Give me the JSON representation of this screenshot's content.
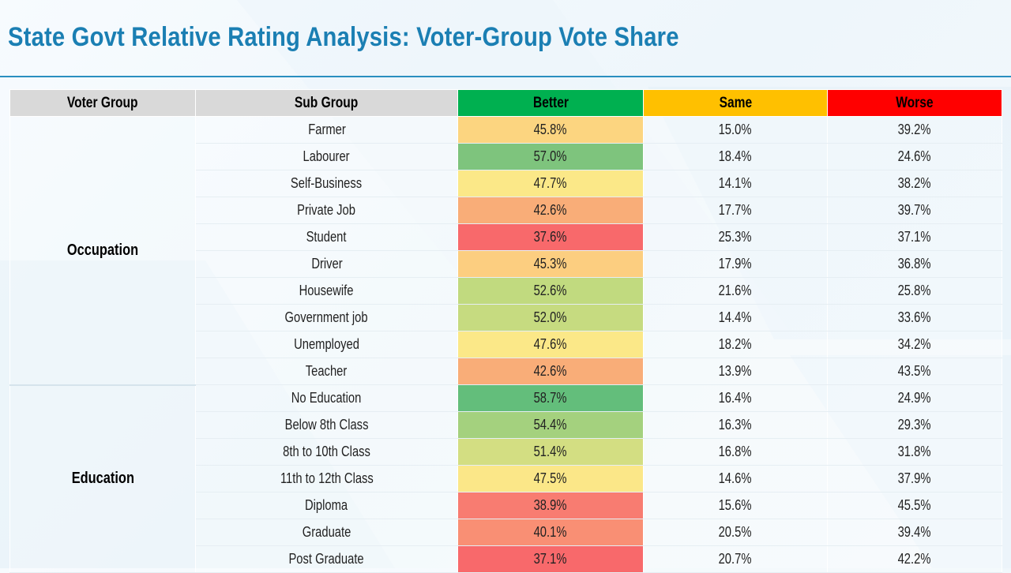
{
  "title": "State Govt Relative Rating Analysis: Voter-Group Vote Share",
  "columns": {
    "voter_group": "Voter Group",
    "sub_group": "Sub Group",
    "better": "Better",
    "same": "Same",
    "worse": "Worse"
  },
  "colors": {
    "better_header": "#00b050",
    "same_header": "#ffc000",
    "worse_header": "#ff0000",
    "title": "#1b7fb3"
  },
  "groups": [
    {
      "name": "Occupation",
      "rows": [
        {
          "sub": "Farmer",
          "better": "45.8%",
          "same": "15.0%",
          "worse": "39.2%",
          "better_color": "#fcd580"
        },
        {
          "sub": "Labourer",
          "better": "57.0%",
          "same": "18.4%",
          "worse": "24.6%",
          "better_color": "#7ec47d"
        },
        {
          "sub": "Self-Business",
          "better": "47.7%",
          "same": "14.1%",
          "worse": "38.2%",
          "better_color": "#fbe888"
        },
        {
          "sub": "Private Job",
          "better": "42.6%",
          "same": "17.7%",
          "worse": "39.7%",
          "better_color": "#f9ad78"
        },
        {
          "sub": "Student",
          "better": "37.6%",
          "same": "25.3%",
          "worse": "37.1%",
          "better_color": "#f8696b"
        },
        {
          "sub": "Driver",
          "better": "45.3%",
          "same": "17.9%",
          "worse": "36.8%",
          "better_color": "#fcce80"
        },
        {
          "sub": "Housewife",
          "better": "52.6%",
          "same": "21.6%",
          "worse": "25.8%",
          "better_color": "#c1da7f"
        },
        {
          "sub": "Government job",
          "better": "52.0%",
          "same": "14.4%",
          "worse": "33.6%",
          "better_color": "#c6db80"
        },
        {
          "sub": "Unemployed",
          "better": "47.6%",
          "same": "18.2%",
          "worse": "34.2%",
          "better_color": "#fbe888"
        },
        {
          "sub": "Teacher",
          "better": "42.6%",
          "same": "13.9%",
          "worse": "43.5%",
          "better_color": "#f9ad78"
        }
      ]
    },
    {
      "name": "Education",
      "rows": [
        {
          "sub": "No Education",
          "better": "58.7%",
          "same": "16.4%",
          "worse": "24.9%",
          "better_color": "#63be7b"
        },
        {
          "sub": "Below 8th Class",
          "better": "54.4%",
          "same": "16.3%",
          "worse": "29.3%",
          "better_color": "#a4d17e"
        },
        {
          "sub": "8th to 10th Class",
          "better": "51.4%",
          "same": "16.8%",
          "worse": "31.8%",
          "better_color": "#d3de82"
        },
        {
          "sub": "11th to 12th Class",
          "better": "47.5%",
          "same": "14.6%",
          "worse": "37.9%",
          "better_color": "#fbe788"
        },
        {
          "sub": "Diploma",
          "better": "38.9%",
          "same": "15.6%",
          "worse": "45.5%",
          "better_color": "#f87c71"
        },
        {
          "sub": "Graduate",
          "better": "40.1%",
          "same": "20.5%",
          "worse": "39.4%",
          "better_color": "#f98f74"
        },
        {
          "sub": "Post Graduate",
          "better": "37.1%",
          "same": "20.7%",
          "worse": "42.2%",
          "better_color": "#f8696b"
        }
      ]
    }
  ]
}
